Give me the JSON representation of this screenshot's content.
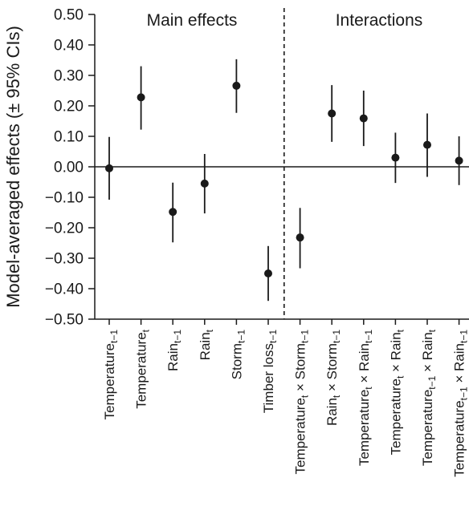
{
  "chart_data": {
    "type": "scatter",
    "title": "",
    "xlabel": "",
    "ylabel": "Model-averaged effects (± 95% CIs)",
    "ylim": [
      -0.5,
      0.5
    ],
    "yticks": [
      "0.50",
      "0.40",
      "0.30",
      "0.20",
      "0.10",
      "0.00",
      "−0.10",
      "−0.20",
      "−0.30",
      "−0.40",
      "−0.50"
    ],
    "section_labels": [
      "Main effects",
      "Interactions"
    ],
    "divider_after_index": 5,
    "zero_line": true,
    "categories": [
      {
        "label": "Temperature",
        "sub": "t−1"
      },
      {
        "label": "Temperature",
        "sub": "t"
      },
      {
        "label": "Rain",
        "sub": "t−1"
      },
      {
        "label": "Rain",
        "sub": "t"
      },
      {
        "label": "Storm",
        "sub": "t−1"
      },
      {
        "label": "Timber loss",
        "sub": "t−1"
      },
      {
        "label": "Temperature",
        "sub": "t",
        "label2": " × Storm",
        "sub2": "t−1"
      },
      {
        "label": "Rain",
        "sub": "t",
        "label2": " × Storm",
        "sub2": "t−1"
      },
      {
        "label": "Temperature",
        "sub": "t",
        "label2": " × Rain",
        "sub2": "t−1"
      },
      {
        "label": "Temperature",
        "sub": "t",
        "label2": " × Rain",
        "sub2": "t"
      },
      {
        "label": "Temperature",
        "sub": "t−1",
        "label2": " × Rain",
        "sub2": "t"
      },
      {
        "label": "Temperature",
        "sub": "t−1",
        "label2": " × Rain",
        "sub2": "t−1"
      }
    ],
    "series": [
      {
        "estimate": [
          -0.005,
          0.228,
          -0.148,
          -0.055,
          0.266,
          -0.35,
          -0.232,
          0.175,
          0.159,
          0.03,
          0.072,
          0.02
        ],
        "lower": [
          -0.108,
          0.122,
          -0.248,
          -0.153,
          0.177,
          -0.44,
          -0.333,
          0.082,
          0.068,
          -0.053,
          -0.033,
          -0.06
        ],
        "upper": [
          0.098,
          0.33,
          -0.052,
          0.042,
          0.353,
          -0.26,
          -0.135,
          0.268,
          0.25,
          0.112,
          0.175,
          0.1
        ]
      }
    ]
  }
}
